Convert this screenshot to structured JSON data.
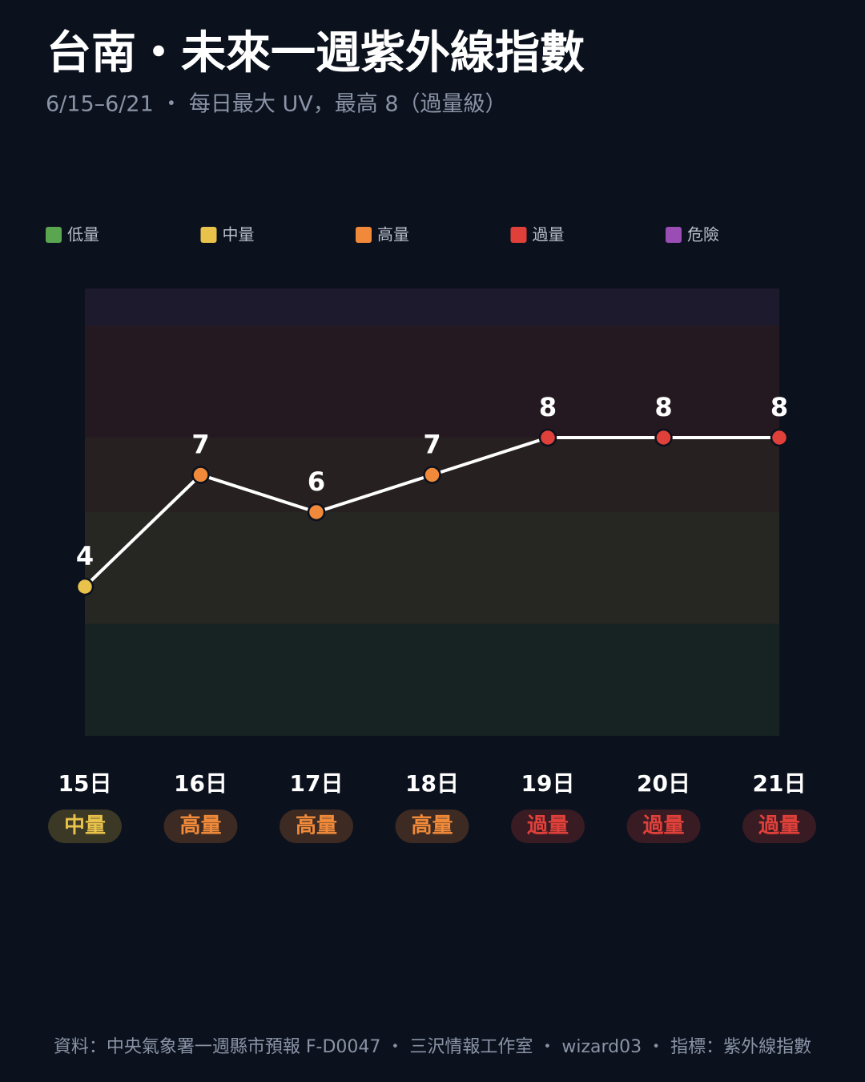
{
  "chart_data": {
    "type": "line",
    "title": "台南・未來一週紫外線指數",
    "subtitle": "6/15–6/21 ・ 每日最大 UV，最高 8（過量級）",
    "categories": [
      "15日",
      "16日",
      "17日",
      "18日",
      "19日",
      "20日",
      "21日"
    ],
    "values": [
      4,
      7,
      6,
      7,
      8,
      8,
      8
    ],
    "levels": [
      "中量",
      "高量",
      "高量",
      "高量",
      "過量",
      "過量",
      "過量"
    ],
    "line_color": "#ffffff",
    "ylim": [
      0,
      12
    ],
    "bands": [
      {
        "name": "低量",
        "color": "#5aa550",
        "range": [
          0,
          3
        ]
      },
      {
        "name": "中量",
        "color": "#e8c24a",
        "range": [
          3,
          6
        ]
      },
      {
        "name": "高量",
        "color": "#f08a3a",
        "range": [
          6,
          8
        ]
      },
      {
        "name": "過量",
        "color": "#e0403a",
        "range": [
          8,
          11
        ]
      },
      {
        "name": "危險",
        "color": "#9a4db5",
        "range": [
          11,
          12
        ]
      }
    ],
    "source": "資料：中央氣象署一週縣市預報 F-D0047 ・ 三沢情報工作室 ・ wizard03 ・ 指標：紫外線指數"
  }
}
